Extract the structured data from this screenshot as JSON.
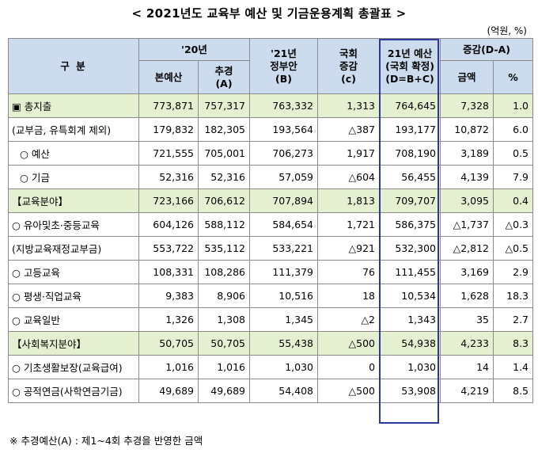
{
  "title": "< 2021년도 교육부 예산 및 기금운용계획 총괄표 >",
  "unit": "(억원, %)",
  "header": {
    "category": "구    분",
    "y20": "'20년",
    "y20_main": "본예산",
    "y20_supp_line1": "추경",
    "y20_supp_line2": "(A)",
    "gov_line1": "'21년",
    "gov_line2": "정부안",
    "gov_line3": "(B)",
    "nat_line1": "국회",
    "nat_line2": "증감",
    "nat_line3": "(c)",
    "final_line1": "21년 예산",
    "final_line2": "(국회 확정)",
    "final_line3": "(D=B+C)",
    "change": "증감(D-A)",
    "change_amount": "금액",
    "change_pct": "%"
  },
  "rows": [
    {
      "label": "▣ 총지출",
      "main": "773,871",
      "supp": "757,317",
      "gov": "763,332",
      "nat": "1,313",
      "final": "764,645",
      "diff": "7,328",
      "pct": "1.0",
      "highlight": true
    },
    {
      "label": "(교부금, 유특회계 제외)",
      "main": "179,832",
      "supp": "182,305",
      "gov": "193,564",
      "nat": "△387",
      "final": "193,177",
      "diff": "10,872",
      "pct": "6.0",
      "highlight": false
    },
    {
      "label": "○  예산",
      "main": "721,555",
      "supp": "705,001",
      "gov": "706,273",
      "nat": "1,917",
      "final": "708,190",
      "diff": "3,189",
      "pct": "0.5",
      "highlight": false
    },
    {
      "label": "○  기금",
      "main": "52,316",
      "supp": "52,316",
      "gov": "57,059",
      "nat": "△604",
      "final": "56,455",
      "diff": "4,139",
      "pct": "7.9",
      "highlight": false
    },
    {
      "label": "【교육분야】",
      "main": "723,166",
      "supp": "706,612",
      "gov": "707,894",
      "nat": "1,813",
      "final": "709,707",
      "diff": "3,095",
      "pct": "0.4",
      "highlight": true
    },
    {
      "label": "○ 유아및초·중등교육",
      "main": "604,126",
      "supp": "588,112",
      "gov": "584,654",
      "nat": "1,721",
      "final": "586,375",
      "diff": "△1,737",
      "pct": "△0.3",
      "highlight": false
    },
    {
      "label": "(지방교육재정교부금)",
      "main": "553,722",
      "supp": "535,112",
      "gov": "533,221",
      "nat": "△921",
      "final": "532,300",
      "diff": "△2,812",
      "pct": "△0.5",
      "highlight": false
    },
    {
      "label": "○ 고등교육",
      "main": "108,331",
      "supp": "108,286",
      "gov": "111,379",
      "nat": "76",
      "final": "111,455",
      "diff": "3,169",
      "pct": "2.9",
      "highlight": false
    },
    {
      "label": "○ 평생·직업교육",
      "main": "9,383",
      "supp": "8,906",
      "gov": "10,516",
      "nat": "18",
      "final": "10,534",
      "diff": "1,628",
      "pct": "18.3",
      "highlight": false
    },
    {
      "label": "○ 교육일반",
      "main": "1,326",
      "supp": "1,308",
      "gov": "1,345",
      "nat": "△2",
      "final": "1,343",
      "diff": "35",
      "pct": "2.7",
      "highlight": false
    },
    {
      "label": "【사회복지분야】",
      "main": "50,705",
      "supp": "50,705",
      "gov": "55,438",
      "nat": "△500",
      "final": "54,938",
      "diff": "4,233",
      "pct": "8.3",
      "highlight": true
    },
    {
      "label": "○ 기초생활보장(교육급여)",
      "main": "1,016",
      "supp": "1,016",
      "gov": "1,030",
      "nat": "0",
      "final": "1,030",
      "diff": "14",
      "pct": "1.4",
      "highlight": false
    },
    {
      "label": "○ 공적연금(사학연금기금)",
      "main": "49,689",
      "supp": "49,689",
      "gov": "54,408",
      "nat": "△500",
      "final": "53,908",
      "diff": "4,219",
      "pct": "8.5",
      "highlight": false
    }
  ],
  "footnote": "※  추경예산(A) : 제1~4회 추경을 반영한 금액",
  "colors": {
    "header_bg": "#ccdcee",
    "highlight_bg": "#e4f0cf",
    "frame": "#2b3a9a"
  }
}
